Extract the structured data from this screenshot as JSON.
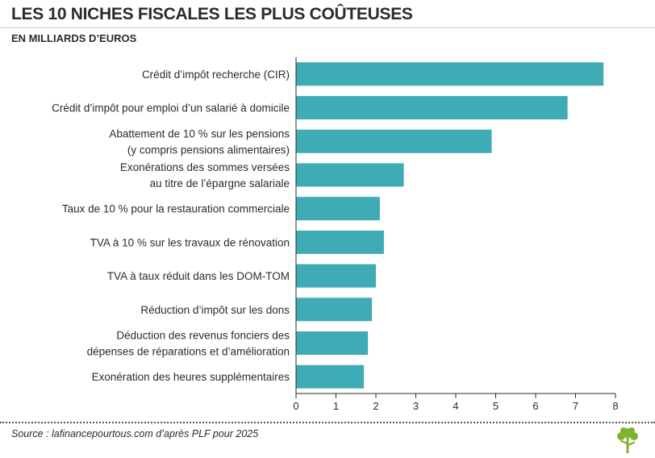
{
  "header": {
    "title": "LES 10 NICHES FISCALES LES PLUS COÛTEUSES",
    "subtitle": "EN MILLIARDS D’EUROS"
  },
  "footer": {
    "source": "Source : lafinancepourtous.com d’après PLF pour 2025",
    "logo_icon": "tree-logo-icon"
  },
  "colors": {
    "bar": "#3fabb5",
    "axis": "#2b2b2b",
    "logo": "#7cb52f"
  },
  "chart_data": {
    "type": "bar",
    "orientation": "horizontal",
    "title": "LES 10 NICHES FISCALES LES PLUS COÛTEUSES",
    "subtitle": "EN MILLIARDS D’EUROS",
    "categories": [
      [
        "Crédit d’impôt recherche (CIR)"
      ],
      [
        "Crédit d’impôt pour emploi d’un salarié à domicile"
      ],
      [
        "Abattement de 10 % sur les pensions",
        "(y compris pensions alimentaires)"
      ],
      [
        "Exonérations des sommes versées",
        "au titre de l’épargne salariale"
      ],
      [
        "Taux de 10 % pour la restauration commerciale"
      ],
      [
        "TVA à 10 % sur les travaux de rénovation"
      ],
      [
        "TVA à taux réduit dans les DOM-TOM"
      ],
      [
        "Réduction d’impôt sur les dons"
      ],
      [
        "Déduction des revenus fonciers des",
        "dépenses de réparations et d’amélioration"
      ],
      [
        "Exonération des heures supplémentaires"
      ]
    ],
    "values": [
      7.7,
      6.8,
      4.9,
      2.7,
      2.1,
      2.2,
      2.0,
      1.9,
      1.8,
      1.7
    ],
    "xlim": [
      0,
      8
    ],
    "xticks": [
      0,
      1,
      2,
      3,
      4,
      5,
      6,
      7,
      8
    ],
    "grid": false,
    "xlabel": "",
    "ylabel": ""
  }
}
